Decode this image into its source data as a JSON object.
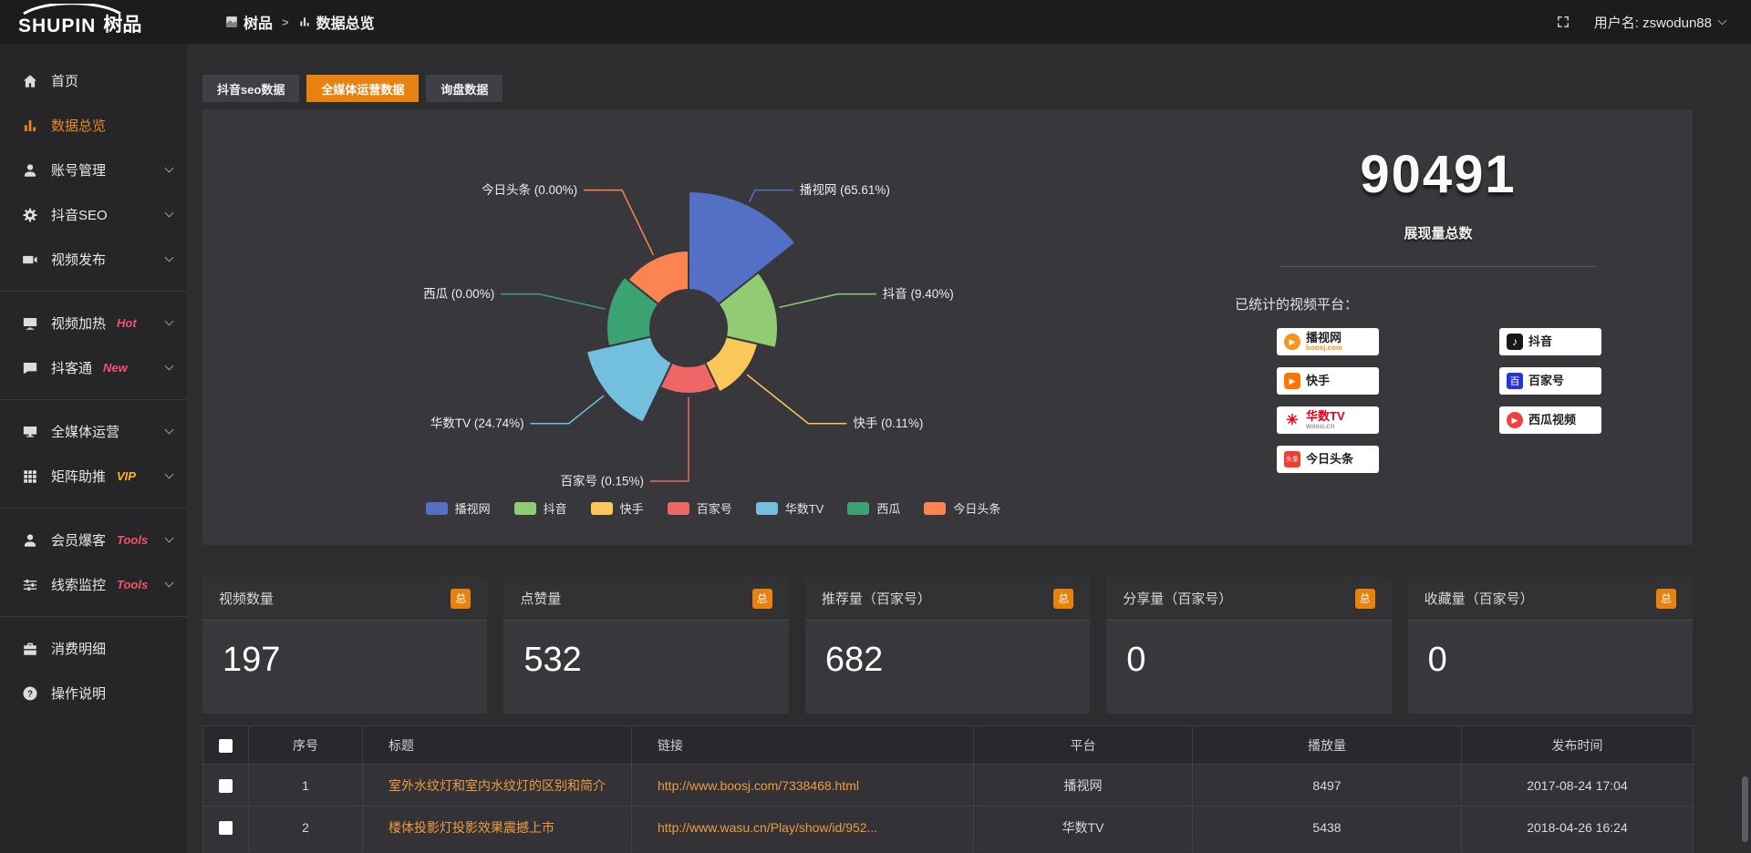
{
  "header": {
    "logo_en": "SHUPIN",
    "logo_cn": "树品",
    "breadcrumb": {
      "root": "树品",
      "separator": ">",
      "current": "数据总览"
    },
    "username": "用户名: zswodun88"
  },
  "sidebar": {
    "items": [
      {
        "label": "首页",
        "icon": "home-icon",
        "tag": "",
        "active": false
      },
      {
        "label": "数据总览",
        "icon": "bar-chart-icon",
        "tag": "",
        "active": true
      },
      {
        "label": "账号管理",
        "icon": "user-icon",
        "tag": "",
        "active": false
      },
      {
        "label": "抖音SEO",
        "icon": "gear-icon",
        "tag": "",
        "active": false
      },
      {
        "label": "视频发布",
        "icon": "video-camera-icon",
        "tag": "",
        "active": false
      },
      {
        "label": "视频加热",
        "icon": "monitor-icon",
        "tag": "Hot",
        "active": false
      },
      {
        "label": "抖客通",
        "icon": "chat-icon",
        "tag": "New",
        "active": false
      },
      {
        "label": "全媒体运营",
        "icon": "monitor-icon",
        "tag": "",
        "active": false
      },
      {
        "label": "矩阵助推",
        "icon": "grid-icon",
        "tag": "VIP",
        "active": false
      },
      {
        "label": "会员爆客",
        "icon": "member-icon",
        "tag": "Tools",
        "active": false
      },
      {
        "label": "线索监控",
        "icon": "sliders-icon",
        "tag": "Tools",
        "active": false
      },
      {
        "label": "消费明细",
        "icon": "briefcase-icon",
        "tag": "",
        "active": false
      },
      {
        "label": "操作说明",
        "icon": "help-icon",
        "tag": "",
        "active": false
      }
    ]
  },
  "tabs": [
    {
      "label": "抖音seo数据",
      "active": false
    },
    {
      "label": "全媒体运营数据",
      "active": true
    },
    {
      "label": "询盘数据",
      "active": false
    }
  ],
  "chart_data": {
    "type": "pie",
    "variant": "nightingale-rose-donut",
    "categories": [
      "播视网",
      "抖音",
      "快手",
      "百家号",
      "华数TV",
      "西瓜",
      "今日头条"
    ],
    "values": [
      65.61,
      9.4,
      0.11,
      0.15,
      24.74,
      0.0,
      0.0
    ],
    "labels": [
      "播视网 (65.61%)",
      "抖音 (9.40%)",
      "快手 (0.11%)",
      "百家号 (0.15%)",
      "华数TV (24.74%)",
      "西瓜 (0.00%)",
      "今日头条 (0.00%)"
    ],
    "colors": [
      "#5470c6",
      "#91cc75",
      "#fac858",
      "#ee6666",
      "#73c0de",
      "#3ba272",
      "#fc8452"
    ],
    "radii": [
      150,
      98,
      78,
      72,
      115,
      90,
      85
    ],
    "inner_radius": 42,
    "legend_position": "bottom"
  },
  "summary": {
    "total_value": "90491",
    "total_label": "展现量总数",
    "platforms_label": "已统计的视频平台：",
    "platforms": [
      {
        "name": "播视网",
        "sub": "boosj.com",
        "logo": "boosj-logo",
        "glyph": "▶"
      },
      {
        "name": "抖音",
        "sub": "",
        "logo": "douyin-logo",
        "glyph": "♪"
      },
      {
        "name": "快手",
        "sub": "",
        "logo": "kuaishou-logo",
        "glyph": "▶"
      },
      {
        "name": "百家号",
        "sub": "",
        "logo": "baijiahao-logo",
        "glyph": "百"
      },
      {
        "name": "华数TV",
        "sub": "wasu.cn",
        "logo": "wasu-logo",
        "glyph": "✳"
      },
      {
        "name": "西瓜视频",
        "sub": "",
        "logo": "xigua-logo",
        "glyph": "▶"
      },
      {
        "name": "今日头条",
        "sub": "",
        "logo": "toutiao-logo",
        "glyph": "头条"
      }
    ]
  },
  "stat_cards": [
    {
      "title": "视频数量",
      "badge": "总",
      "value": "197"
    },
    {
      "title": "点赞量",
      "badge": "总",
      "value": "532"
    },
    {
      "title": "推荐量（百家号）",
      "badge": "总",
      "value": "682"
    },
    {
      "title": "分享量（百家号）",
      "badge": "总",
      "value": "0"
    },
    {
      "title": "收藏量（百家号）",
      "badge": "总",
      "value": "0"
    }
  ],
  "table": {
    "columns": [
      "序号",
      "标题",
      "链接",
      "平台",
      "播放量",
      "发布时间"
    ],
    "rows": [
      {
        "index": "1",
        "title": "室外水纹灯和室内水纹灯的区别和简介",
        "link": "http://www.boosj.com/7338468.html",
        "platform": "播视网",
        "plays": "8497",
        "time": "2017-08-24 17:04"
      },
      {
        "index": "2",
        "title": "楼体投影灯投影效果震撼上市",
        "link": "http://www.wasu.cn/Play/show/id/952...",
        "platform": "华数TV",
        "plays": "5438",
        "time": "2018-04-26 16:24"
      }
    ]
  },
  "colors": {
    "accent": "#e8820e",
    "link": "#ef9a3e",
    "tag_hot": "#f4516c",
    "tag_vip": "#ffb822"
  }
}
